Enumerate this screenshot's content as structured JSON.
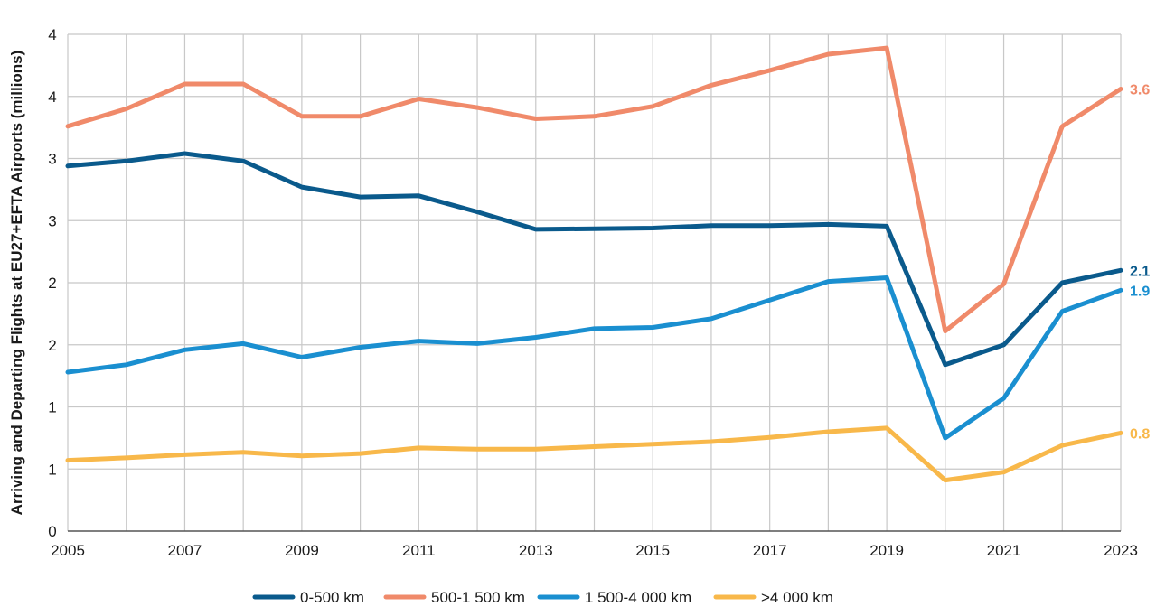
{
  "chart_data": {
    "type": "line",
    "title": "",
    "xlabel": "",
    "ylabel": "Arriving and Departing Flights at EU27+EFTA Airports (millions)",
    "x": [
      2005,
      2006,
      2007,
      2008,
      2009,
      2010,
      2011,
      2012,
      2013,
      2014,
      2015,
      2016,
      2017,
      2018,
      2019,
      2020,
      2021,
      2022,
      2023
    ],
    "xticks": [
      "2005",
      "2007",
      "2009",
      "2011",
      "2013",
      "2015",
      "2017",
      "2019",
      "2021",
      "2023"
    ],
    "ylim": [
      0,
      4
    ],
    "yticks": [
      0,
      0.5,
      1,
      1.5,
      2,
      2.5,
      3,
      3.5,
      4
    ],
    "ytick_labels": [
      "0",
      "1",
      "1",
      "2",
      "2",
      "3",
      "3",
      "4",
      "4"
    ],
    "grid": true,
    "legend_position": "bottom-center",
    "series": [
      {
        "name": "0-500 km",
        "color": "#0a5a8c",
        "values": [
          2.94,
          2.98,
          3.04,
          2.98,
          2.77,
          2.69,
          2.7,
          2.57,
          2.43,
          2.435,
          2.44,
          2.46,
          2.46,
          2.47,
          2.455,
          1.34,
          1.5,
          2.0,
          2.1
        ],
        "end_label": "2.1"
      },
      {
        "name": "500-1 500 km",
        "color": "#f08a6a",
        "values": [
          3.26,
          3.4,
          3.6,
          3.6,
          3.34,
          3.34,
          3.48,
          3.41,
          3.32,
          3.34,
          3.42,
          3.59,
          3.71,
          3.84,
          3.89,
          1.61,
          1.99,
          3.26,
          3.56
        ],
        "end_label": "3.6"
      },
      {
        "name": "1 500-4 000 km",
        "color": "#1a8fd0",
        "values": [
          1.28,
          1.34,
          1.46,
          1.51,
          1.4,
          1.48,
          1.53,
          1.51,
          1.56,
          1.63,
          1.64,
          1.71,
          1.86,
          2.01,
          2.04,
          0.75,
          1.07,
          1.77,
          1.94
        ],
        "end_label": "1.9"
      },
      {
        "name": ">4 000 km",
        "color": "#f8b84a",
        "values": [
          0.57,
          0.59,
          0.615,
          0.635,
          0.605,
          0.625,
          0.67,
          0.66,
          0.66,
          0.68,
          0.7,
          0.72,
          0.755,
          0.8,
          0.83,
          0.41,
          0.475,
          0.69,
          0.79
        ],
        "end_label": "0.8"
      }
    ]
  }
}
